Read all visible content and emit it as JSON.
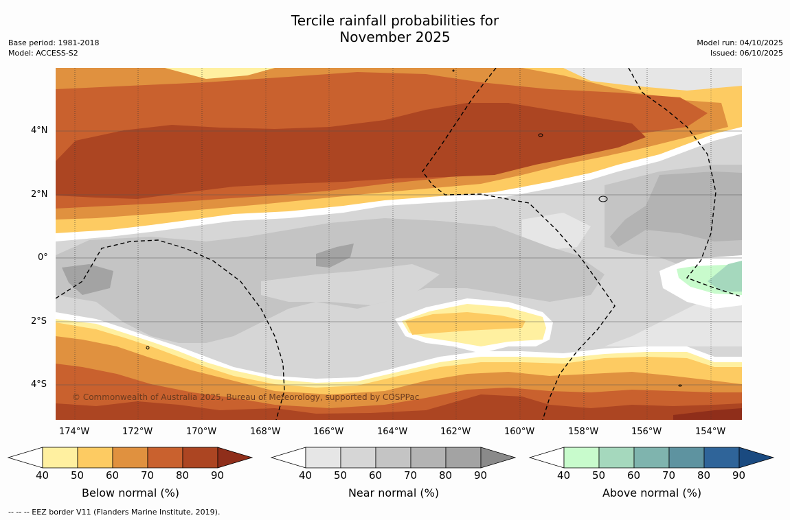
{
  "title": {
    "line1": "Tercile rainfall probabilities for",
    "line2": "November 2025"
  },
  "meta_left": {
    "base_period": "Base period: 1981-2018",
    "model": "Model: ACCESS-S2"
  },
  "meta_right": {
    "model_run": "Model run: 04/10/2025",
    "issued": "Issued: 06/10/2025"
  },
  "map": {
    "lat_labels": [
      "4°N",
      "2°N",
      "0°",
      "2°S",
      "4°S"
    ],
    "lon_labels": [
      "174°W",
      "172°W",
      "170°W",
      "168°W",
      "166°W",
      "164°W",
      "162°W",
      "160°W",
      "158°W",
      "156°W",
      "154°W"
    ],
    "copyright": "© Commonwealth of Australia 2025, Bureau of Meteorology, supported by COSPPac"
  },
  "colorbars": [
    {
      "label": "Below normal (%)",
      "ticks": [
        "40",
        "50",
        "60",
        "70",
        "80",
        "90"
      ],
      "colors": [
        "#fff0a0",
        "#fdcb62",
        "#e0913f",
        "#c9612e",
        "#ac4522",
        "#8f2e1a"
      ]
    },
    {
      "label": "Near normal (%)",
      "ticks": [
        "40",
        "50",
        "60",
        "70",
        "80",
        "90"
      ],
      "colors": [
        "#e6e6e6",
        "#d6d6d6",
        "#c4c4c4",
        "#b3b3b3",
        "#a3a3a3",
        "#8a8a8a"
      ]
    },
    {
      "label": "Above normal (%)",
      "ticks": [
        "40",
        "50",
        "60",
        "70",
        "80",
        "90"
      ],
      "colors": [
        "#c8fbcc",
        "#a5d8bd",
        "#7fb4ae",
        "#5e93a0",
        "#2f6499",
        "#1a4a80"
      ]
    }
  ],
  "footnote": "--  --  -- EEZ border V11 (Flanders Marine Institute, 2019).",
  "colors": {
    "white": "#ffffff",
    "ocean_bg": "#d6d6d6"
  }
}
